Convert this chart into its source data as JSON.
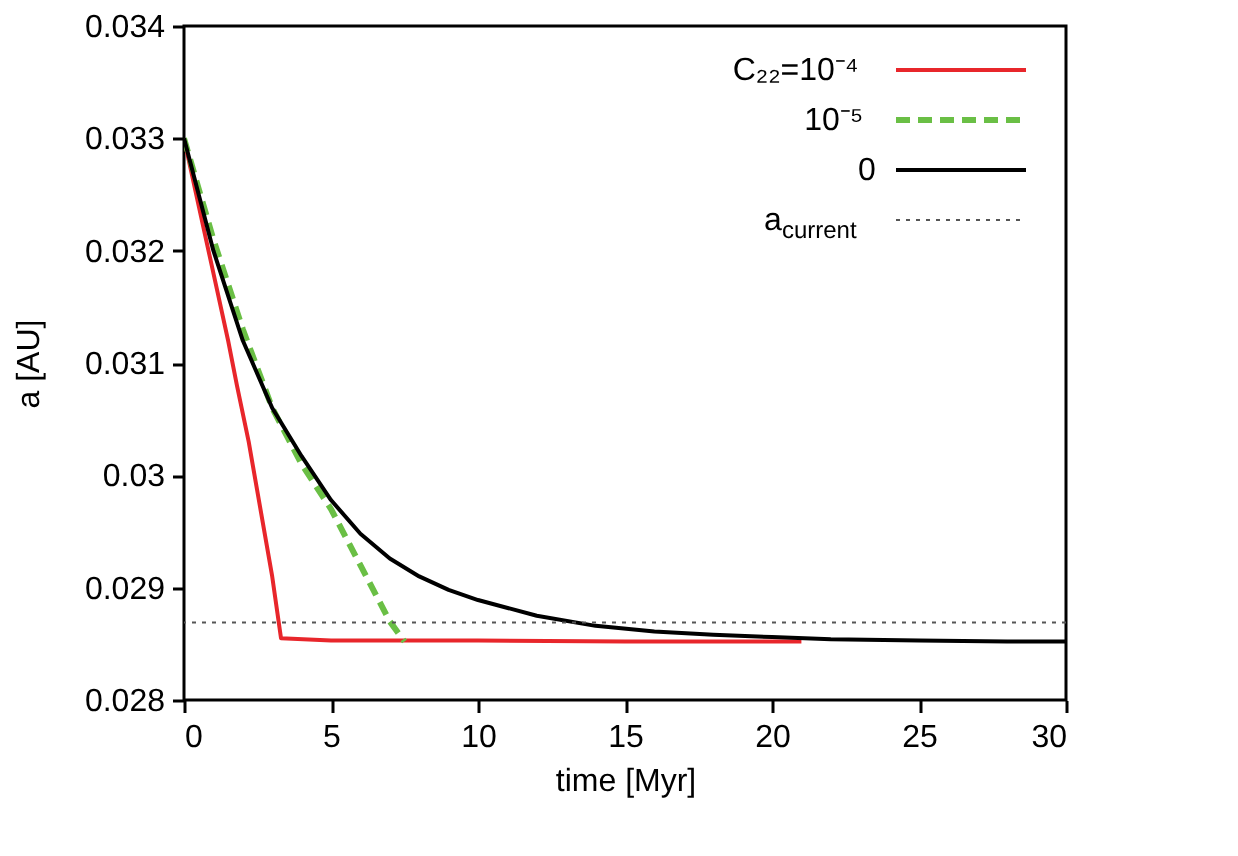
{
  "chart_data": {
    "type": "line",
    "xlabel": "time [Myr]",
    "ylabel": "a [AU]",
    "xlim": [
      0,
      30
    ],
    "xticks": [
      0,
      5,
      10,
      15,
      20,
      25,
      30
    ],
    "ylim": [
      0.028,
      0.034
    ],
    "yticks": [
      0.028,
      0.029,
      0.03,
      0.031,
      0.032,
      0.033,
      0.034
    ],
    "legend": "top right",
    "grid": false,
    "series": [
      {
        "name": "C₂₂=10⁻⁴",
        "color": "#e8262b",
        "line_style": "solid",
        "x": [
          0,
          0.5,
          1,
          1.5,
          1.8,
          2.2,
          2.6,
          3,
          3.3,
          5,
          10,
          15,
          21
        ],
        "values": [
          0.033,
          0.0324,
          0.0318,
          0.0312,
          0.0308,
          0.0303,
          0.0297,
          0.0291,
          0.02855,
          0.02853,
          0.02853,
          0.02852,
          0.02852
        ]
      },
      {
        "name": "10⁻⁵",
        "color": "#6abf45",
        "line_style": "dashed",
        "x": [
          0,
          1,
          2,
          3,
          4,
          5,
          6,
          7,
          7.5
        ],
        "values": [
          0.033,
          0.0321,
          0.0313,
          0.0306,
          0.0301,
          0.0297,
          0.0292,
          0.0287,
          0.02852
        ]
      },
      {
        "name": "0",
        "color": "#000000",
        "line_style": "solid",
        "x": [
          0,
          1,
          2,
          3,
          4,
          5,
          6,
          7,
          8,
          9,
          10,
          12,
          14,
          16,
          18,
          20,
          22,
          25,
          28,
          30
        ],
        "values": [
          0.033,
          0.032,
          0.0312,
          0.0306,
          0.03017,
          0.02978,
          0.02948,
          0.02926,
          0.0291,
          0.02898,
          0.02889,
          0.02875,
          0.02866,
          0.02861,
          0.02858,
          0.02856,
          0.02854,
          0.02853,
          0.02852,
          0.02852
        ]
      }
    ],
    "ref_lines": [
      {
        "axis": "y",
        "value": 0.02869,
        "label": "a$_{current}$",
        "color": "#555555",
        "line_style": "dotted"
      }
    ]
  }
}
